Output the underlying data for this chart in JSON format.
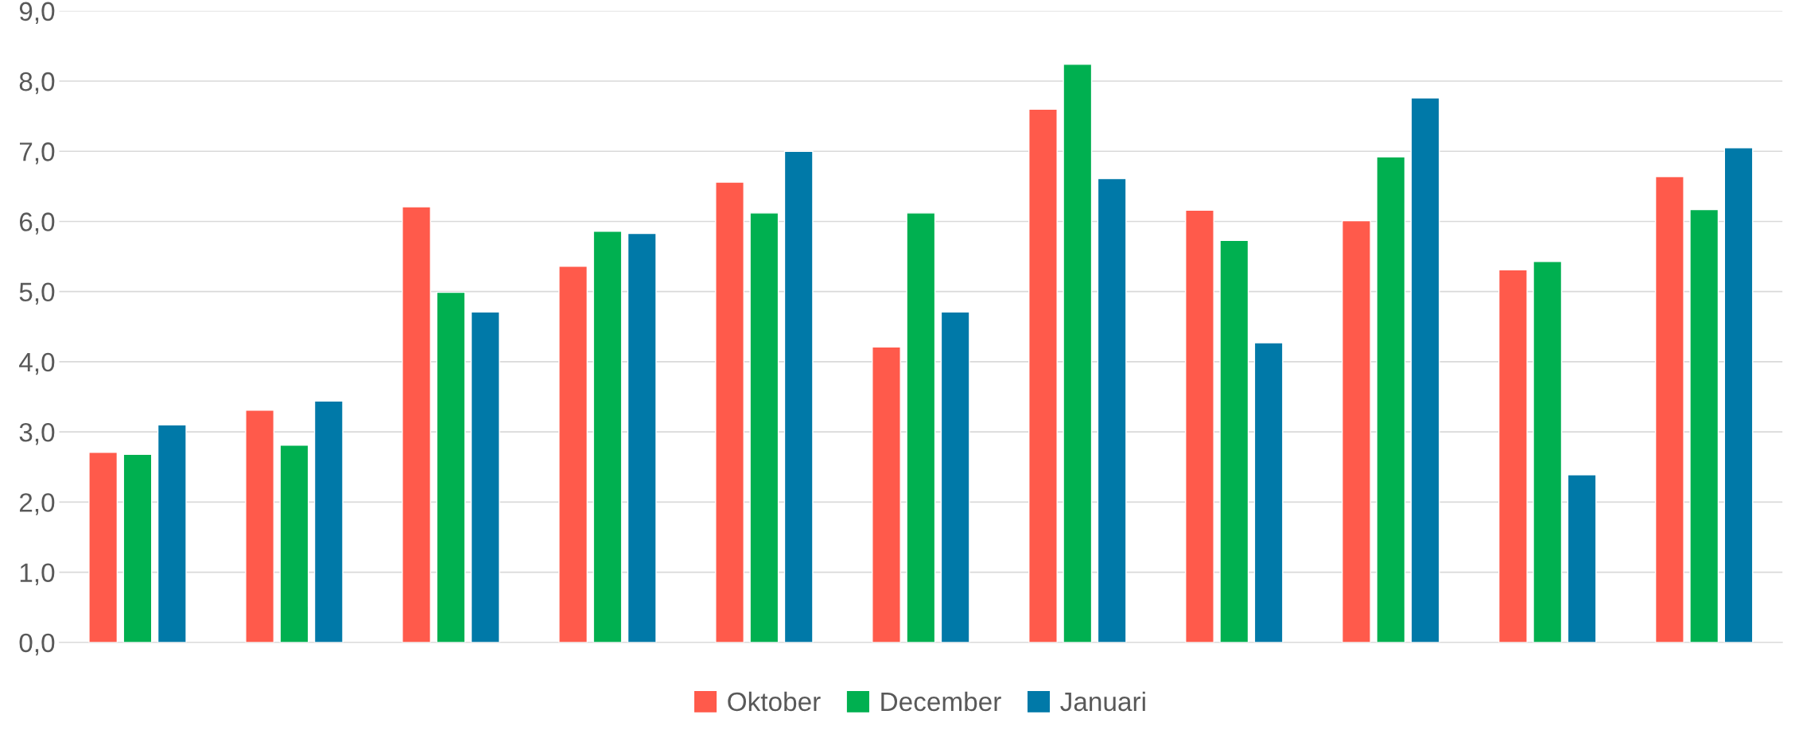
{
  "chart_data": {
    "type": "bar",
    "categories": [
      null,
      null,
      null,
      null,
      null,
      null,
      null,
      null,
      null,
      null,
      null
    ],
    "series": [
      {
        "name": "Oktober",
        "color": "#ff5a4b",
        "values": [
          2.71,
          3.31,
          6.21,
          5.36,
          6.56,
          4.21,
          7.6,
          6.16,
          6.01,
          5.31,
          6.64
        ]
      },
      {
        "name": "December",
        "color": "#00b050",
        "values": [
          2.68,
          2.81,
          4.99,
          5.86,
          6.12,
          6.12,
          8.24,
          5.73,
          6.92,
          5.43,
          6.17
        ]
      },
      {
        "name": "Januari",
        "color": "#0079a8",
        "values": [
          3.1,
          3.44,
          4.71,
          5.83,
          7.0,
          4.71,
          6.61,
          4.27,
          7.76,
          2.39,
          7.05
        ]
      }
    ],
    "ylim": [
      0,
      9
    ],
    "yticks": [
      {
        "value": 0,
        "label": "0,0"
      },
      {
        "value": 1,
        "label": "1,0"
      },
      {
        "value": 2,
        "label": "2,0"
      },
      {
        "value": 3,
        "label": "3,0"
      },
      {
        "value": 4,
        "label": "4,0"
      },
      {
        "value": 5,
        "label": "5,0"
      },
      {
        "value": 6,
        "label": "6,0"
      },
      {
        "value": 7,
        "label": "7,0"
      },
      {
        "value": 8,
        "label": "8,0"
      },
      {
        "value": 9,
        "label": "9,0"
      }
    ],
    "grid": "y",
    "legend": "bottom"
  }
}
